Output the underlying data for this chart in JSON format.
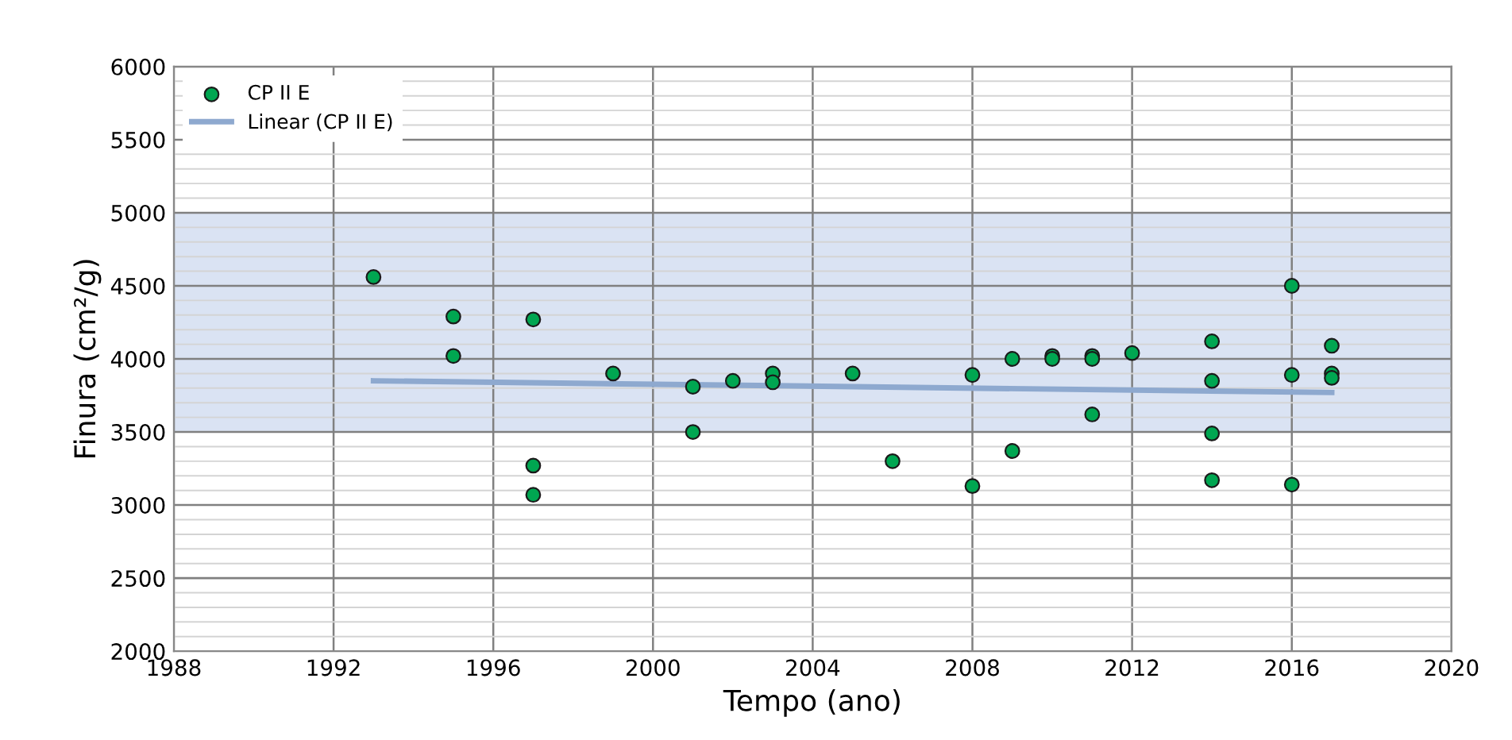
{
  "chart_data": {
    "type": "scatter",
    "xlabel": "Tempo (ano)",
    "ylabel": "Finura (cm²/g)",
    "xlim": [
      1988,
      2020
    ],
    "xticks": [
      1988,
      1992,
      1996,
      2000,
      2004,
      2008,
      2012,
      2016,
      2020
    ],
    "ylim": [
      2000,
      6000
    ],
    "yticks": [
      2000,
      2500,
      3000,
      3500,
      4000,
      4500,
      5000,
      5500,
      6000
    ],
    "grid": true,
    "legend": "top left",
    "bands": [
      {
        "axis": "y",
        "from": 3500,
        "to": 5000,
        "color": "#dae3f3"
      }
    ],
    "series": [
      {
        "name": "CP II E",
        "marker": "circle",
        "color": "#00a651",
        "x": [
          1993,
          1995,
          1995,
          1997,
          1997,
          1997,
          1999,
          2001,
          2001,
          2002,
          2003,
          2003,
          2005,
          2006,
          2008,
          2008,
          2009,
          2009,
          2010,
          2010,
          2011,
          2011,
          2011,
          2012,
          2014,
          2014,
          2014,
          2014,
          2016,
          2016,
          2016,
          2017,
          2017,
          2017
        ],
        "values": [
          4560,
          4290,
          4020,
          4270,
          3270,
          3070,
          3900,
          3810,
          3500,
          3850,
          3900,
          3840,
          3900,
          3300,
          3890,
          3130,
          4000,
          3370,
          4020,
          4000,
          4020,
          4000,
          3620,
          4040,
          4120,
          3850,
          3490,
          3170,
          4500,
          3890,
          3140,
          4090,
          3900,
          3870
        ]
      },
      {
        "name": "Linear (CP II E)",
        "type": "line",
        "color": "#8ea9cf",
        "marker": "none",
        "x": [
          1993,
          2017
        ],
        "values": [
          3850,
          3770
        ]
      }
    ]
  }
}
